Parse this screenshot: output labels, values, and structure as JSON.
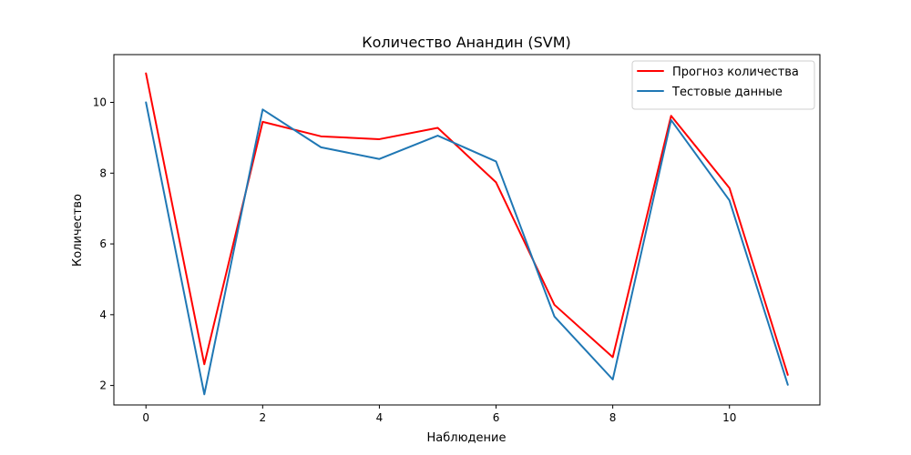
{
  "chart_data": {
    "type": "line",
    "title": "Количество Анандин  (SVM)",
    "xlabel": "Наблюдение",
    "ylabel": "Количество",
    "x": [
      0,
      1,
      2,
      3,
      4,
      5,
      6,
      7,
      8,
      9,
      10,
      11
    ],
    "xlim": [
      -0.55,
      11.55
    ],
    "ylim": [
      1.45,
      11.35
    ],
    "xticks": [
      "0",
      "2",
      "4",
      "6",
      "8",
      "10"
    ],
    "yticks": [
      "2",
      "4",
      "6",
      "8",
      "10"
    ],
    "grid": false,
    "legend_position": "top-right",
    "series": [
      {
        "name": "Прогноз количества",
        "color": "#ff0000",
        "values": [
          10.82,
          2.6,
          9.45,
          9.04,
          8.96,
          9.28,
          7.74,
          4.28,
          2.8,
          9.62,
          7.58,
          2.3
        ]
      },
      {
        "name": "Тестовые данные",
        "color": "#1f77b4",
        "values": [
          10.0,
          1.75,
          9.8,
          8.73,
          8.4,
          9.06,
          8.33,
          3.95,
          2.17,
          9.5,
          7.23,
          2.02
        ]
      }
    ]
  }
}
